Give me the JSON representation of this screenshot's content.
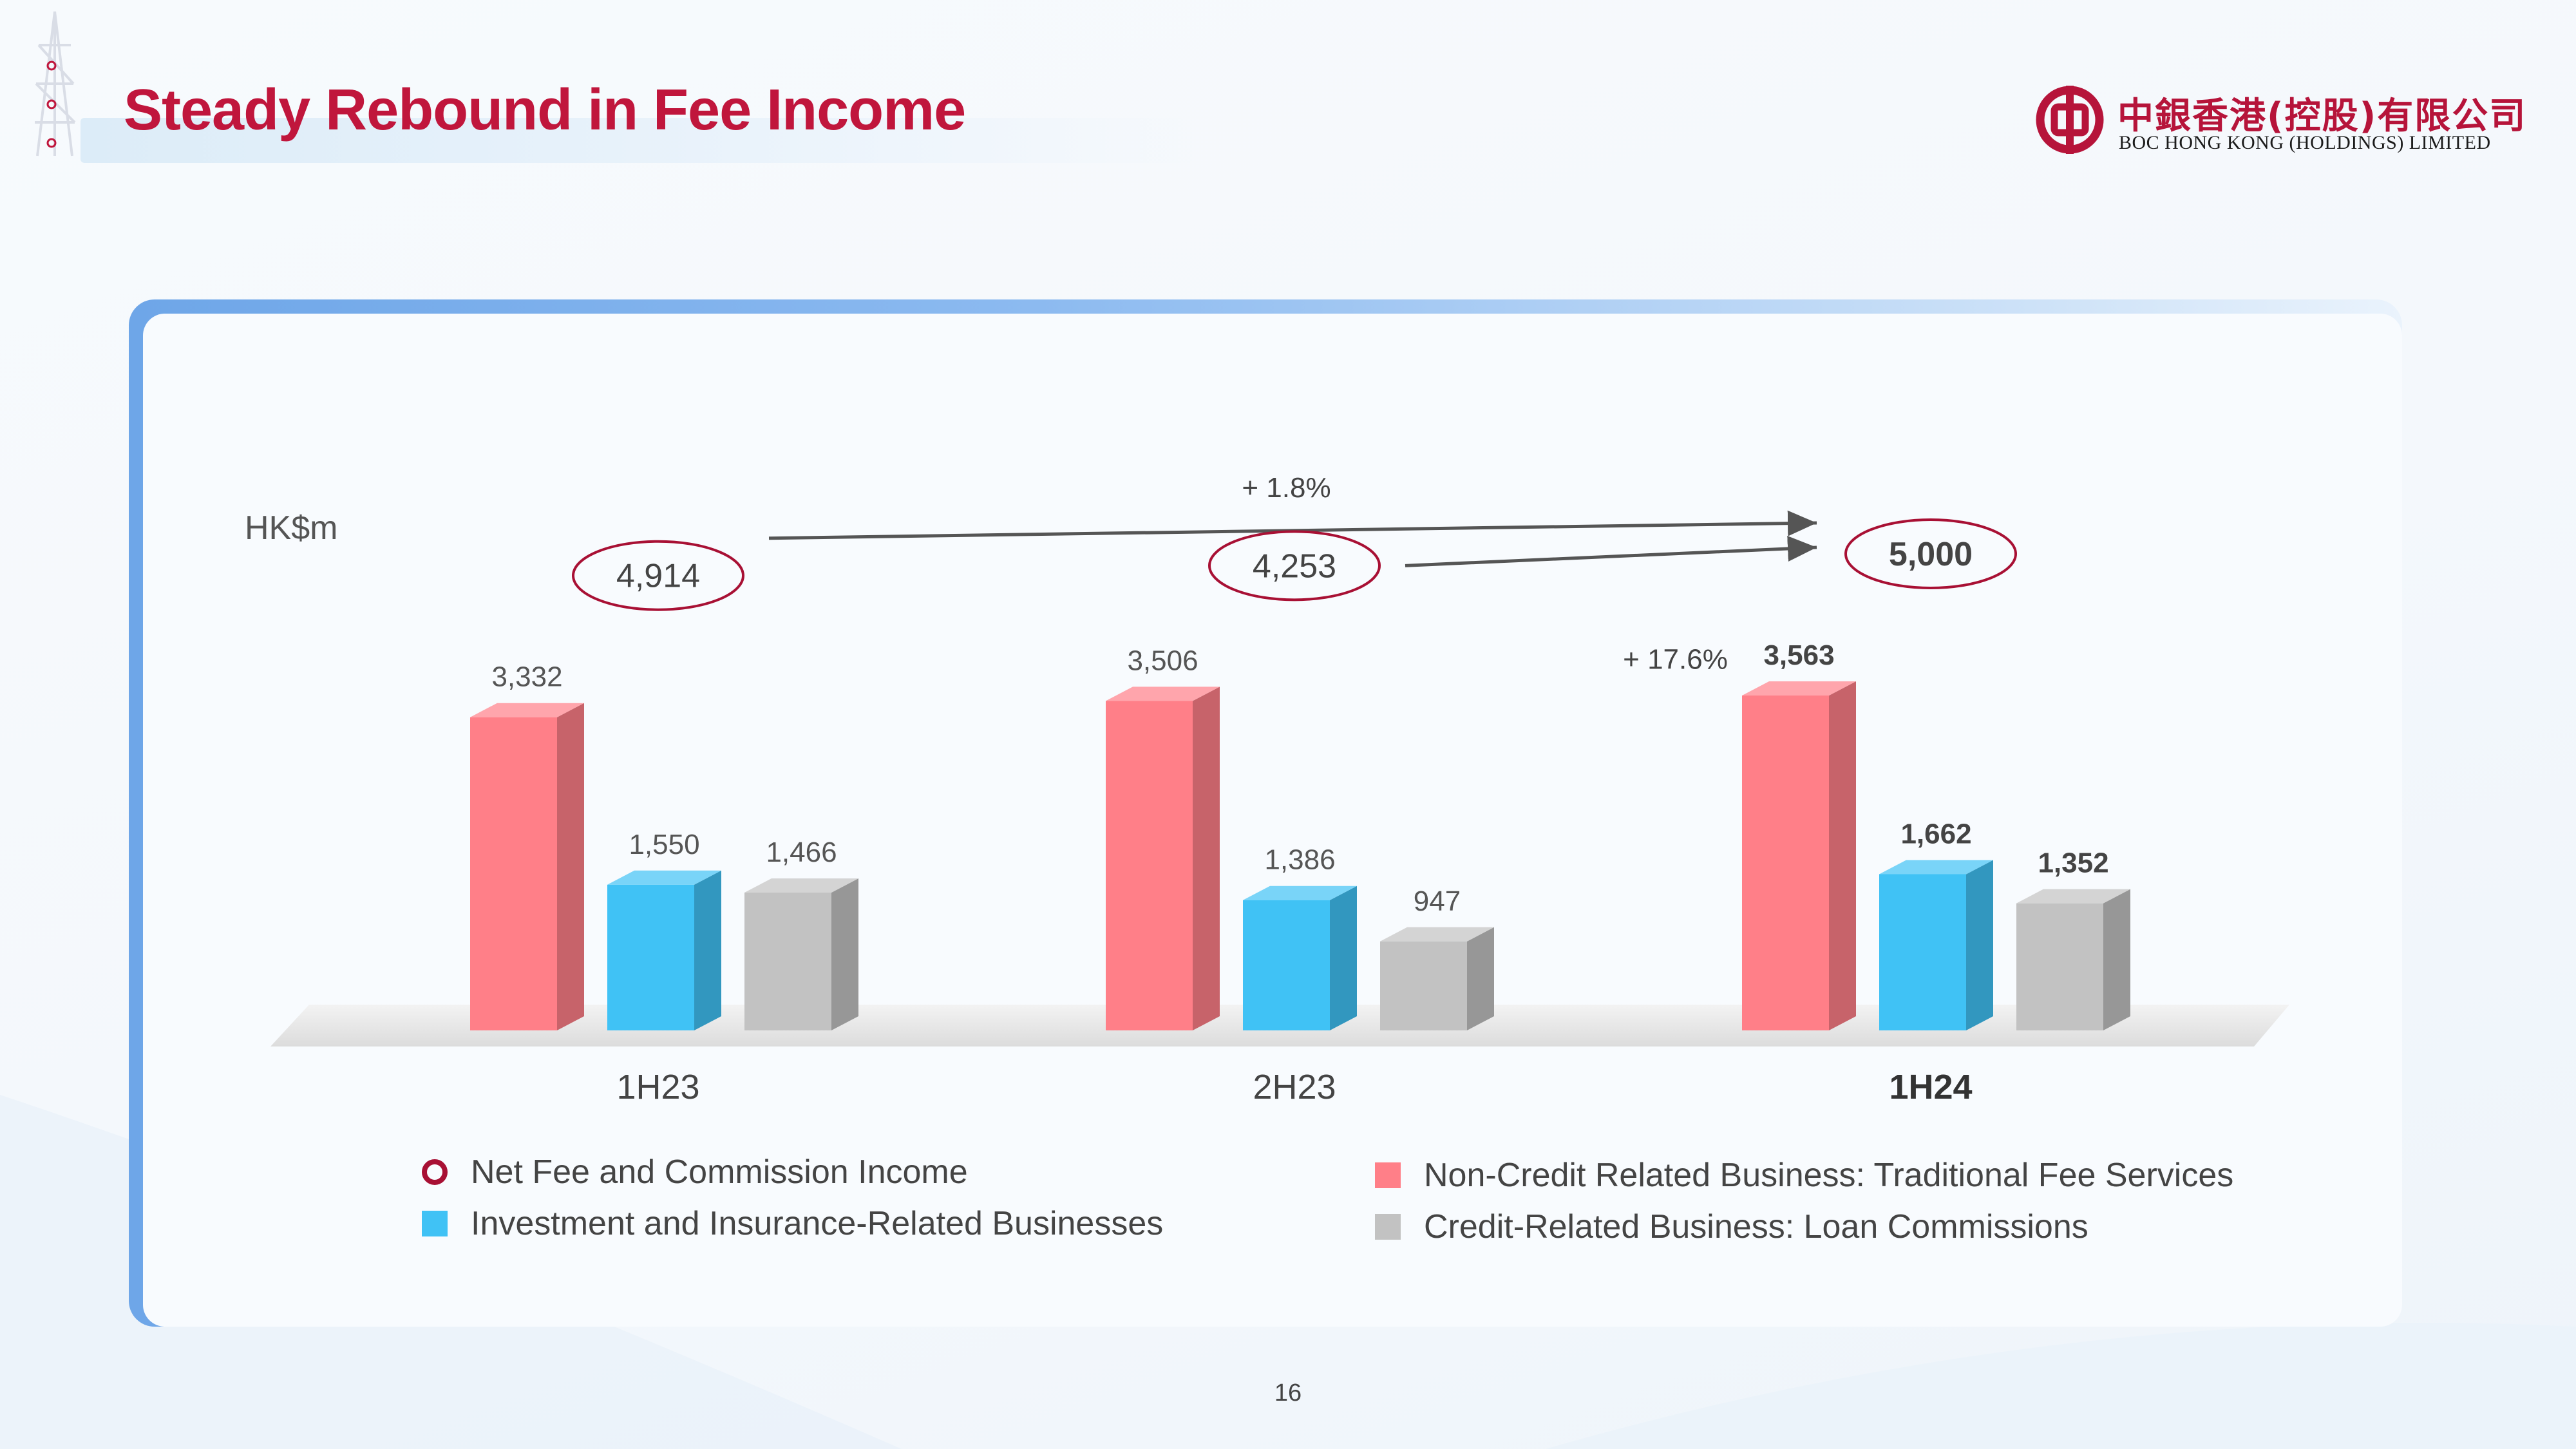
{
  "slide": {
    "title": "Steady Rebound in Fee Income",
    "page_number": "16"
  },
  "logo": {
    "chinese_name": "中銀香港(控股)有限公司",
    "english_name": "BOC HONG KONG (HOLDINGS) LIMITED",
    "color": "#b6143a"
  },
  "chart_data": {
    "type": "bar",
    "unit_label": "HK$m",
    "categories": [
      "1H23",
      "2H23",
      "1H24"
    ],
    "series": [
      {
        "name": "Non-Credit Related Business: Traditional Fee Services",
        "values": [
          3332,
          3506,
          3563
        ],
        "color": "#ff7f88"
      },
      {
        "name": "Investment and Insurance-Related Businesses",
        "values": [
          1550,
          1386,
          1662
        ],
        "color": "#40c2f5"
      },
      {
        "name": "Credit-Related Business: Loan Commissions",
        "values": [
          1466,
          947,
          1352
        ],
        "color": "#c2c2c2"
      }
    ],
    "value_labels": [
      [
        "3,332",
        "1,550",
        "1,466"
      ],
      [
        "3,506",
        "1,386",
        "947"
      ],
      [
        "3,563",
        "1,662",
        "1,352"
      ]
    ],
    "totals": {
      "name": "Net Fee and Commission Income",
      "values": [
        4914,
        4253,
        5000
      ],
      "labels": [
        "4,914",
        "4,253",
        "5,000"
      ],
      "color": "#a81034"
    },
    "growth_annotations": [
      {
        "from": "1H23",
        "to": "1H24",
        "label": "+ 1.8%"
      },
      {
        "from": "2H23",
        "to": "1H24",
        "label": "+ 17.6%"
      }
    ],
    "emphasized_category": "1H24",
    "ylim": [
      0,
      3563
    ],
    "grid": false,
    "legend_position": "bottom"
  },
  "legend": [
    {
      "label": "Net Fee and Commission Income",
      "kind": "circle",
      "color": "#a81034"
    },
    {
      "label": "Investment and Insurance-Related Businesses",
      "kind": "square",
      "color": "#40c2f5"
    },
    {
      "label": "Non-Credit Related Business: Traditional Fee Services",
      "kind": "square",
      "color": "#ff7f88"
    },
    {
      "label": "Credit-Related Business: Loan Commissions",
      "kind": "square",
      "color": "#c2c2c2"
    }
  ]
}
